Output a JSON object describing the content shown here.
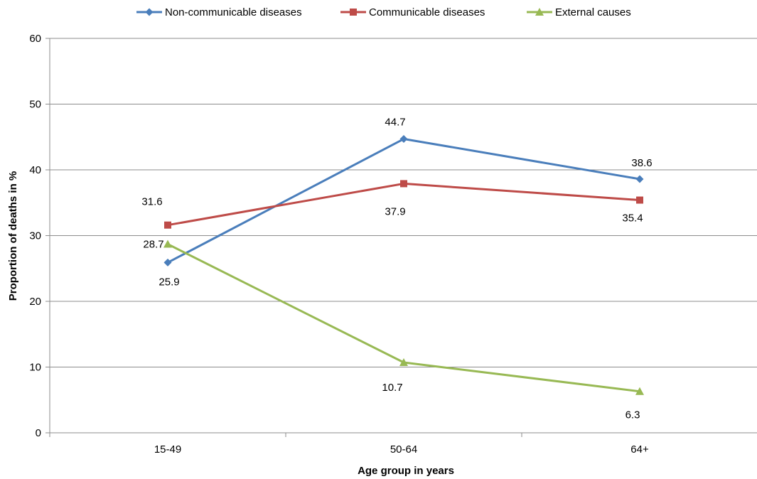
{
  "chart_data": {
    "type": "line",
    "title": "",
    "xlabel": "Age group in years",
    "ylabel": "Proportion of deaths in %",
    "categories": [
      "15-49",
      "50-64",
      "64+"
    ],
    "ylim": [
      0,
      60
    ],
    "yticks": [
      0,
      10,
      20,
      30,
      40,
      50,
      60
    ],
    "grid": true,
    "legend_position": "top",
    "series": [
      {
        "name": "Non-communicable diseases",
        "values": [
          25.9,
          44.7,
          38.6
        ],
        "labels": [
          "25.9",
          "44.7",
          "38.6"
        ],
        "color": "#4a7ebb",
        "marker": "diamond"
      },
      {
        "name": "Communicable diseases",
        "values": [
          31.6,
          37.9,
          35.4
        ],
        "labels": [
          "31.6",
          "37.9",
          "35.4"
        ],
        "color": "#be4b48",
        "marker": "square"
      },
      {
        "name": "External causes",
        "values": [
          28.7,
          10.7,
          6.3
        ],
        "labels": [
          "28.7",
          "10.7",
          "6.3"
        ],
        "color": "#98b954",
        "marker": "triangle"
      }
    ]
  }
}
